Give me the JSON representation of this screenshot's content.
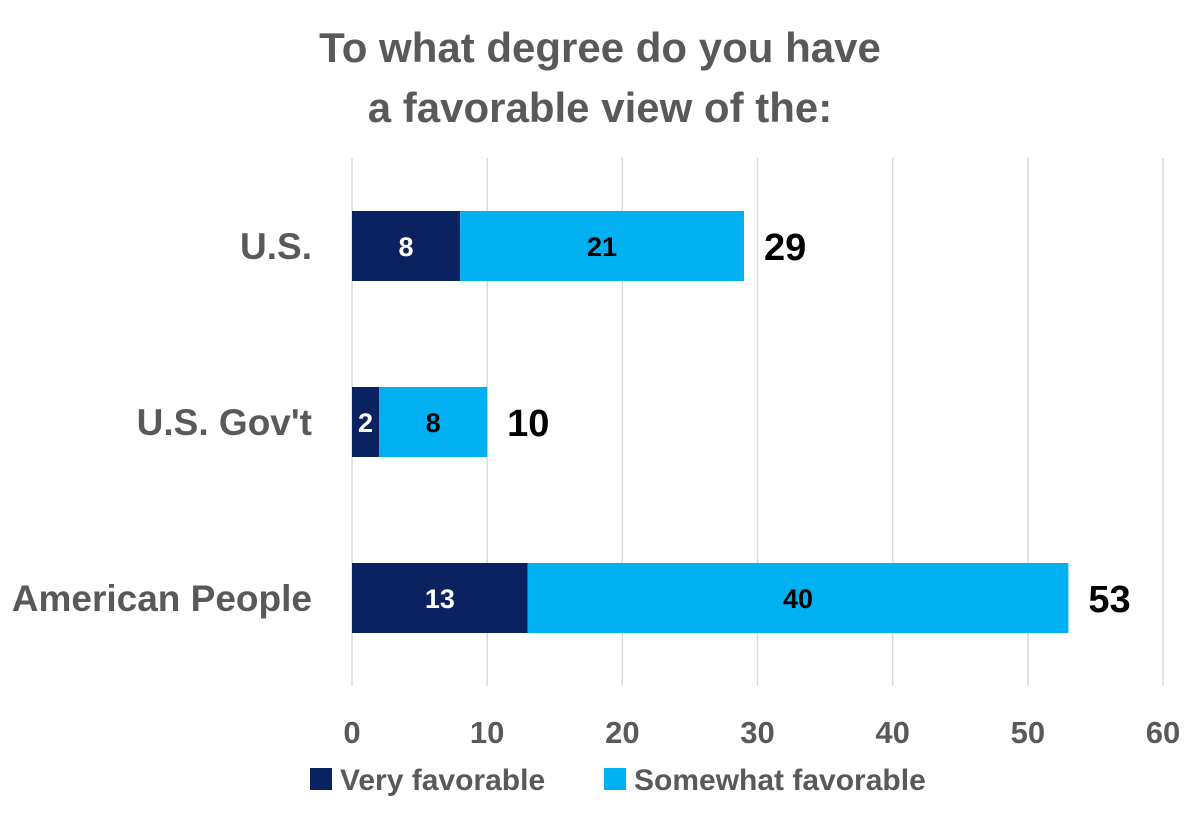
{
  "chart_data": {
    "type": "bar",
    "orientation": "horizontal",
    "stacked": true,
    "title": "To what degree do you have a favorable view of the:",
    "title_lines": [
      "To what degree do you have",
      "a favorable view of the:"
    ],
    "categories": [
      "U.S.",
      "U.S. Gov't",
      "American People"
    ],
    "series": [
      {
        "name": "Very favorable",
        "values": [
          8,
          2,
          13
        ],
        "color": "#0b2260",
        "label_color": "#ffffff"
      },
      {
        "name": "Somewhat favorable",
        "values": [
          21,
          8,
          40
        ],
        "color": "#00b0f0",
        "label_color": "#000000"
      }
    ],
    "totals": [
      29,
      10,
      53
    ],
    "xlim": [
      0,
      60
    ],
    "xticks": [
      0,
      10,
      20,
      30,
      40,
      50,
      60
    ],
    "grid": true,
    "legend_position": "bottom"
  },
  "colors": {
    "title": "#595959",
    "axis_text": "#595959",
    "gridline": "#d9d9d9",
    "total_text": "#000000"
  }
}
